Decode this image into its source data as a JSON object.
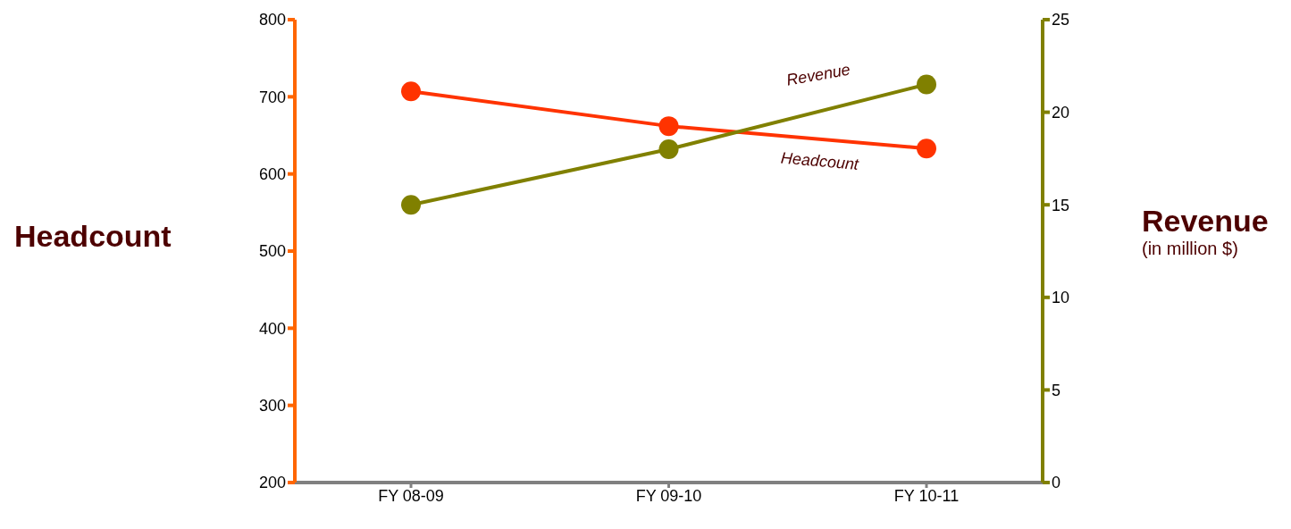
{
  "chart_data": {
    "type": "line",
    "categories": [
      "FY 08-09",
      "FY 09-10",
      "FY 10-11"
    ],
    "ylabel": "Headcount",
    "y2label": "Revenue",
    "annotations": [
      "(in million $)"
    ],
    "ylim": [
      200,
      800
    ],
    "yticks": [
      200,
      300,
      400,
      500,
      600,
      700,
      800
    ],
    "y2lim": [
      0,
      25
    ],
    "y2ticks": [
      0,
      5,
      10,
      15,
      20,
      25
    ],
    "marker": "circle",
    "legend": false,
    "grid": false,
    "series": [
      {
        "name": "Headcount",
        "color": "#ff3300",
        "values": [
          707,
          662,
          633
        ]
      },
      {
        "name": "Revenue",
        "color": "#808000",
        "axis": "y2",
        "values": [
          15,
          18,
          21.5
        ]
      }
    ]
  }
}
